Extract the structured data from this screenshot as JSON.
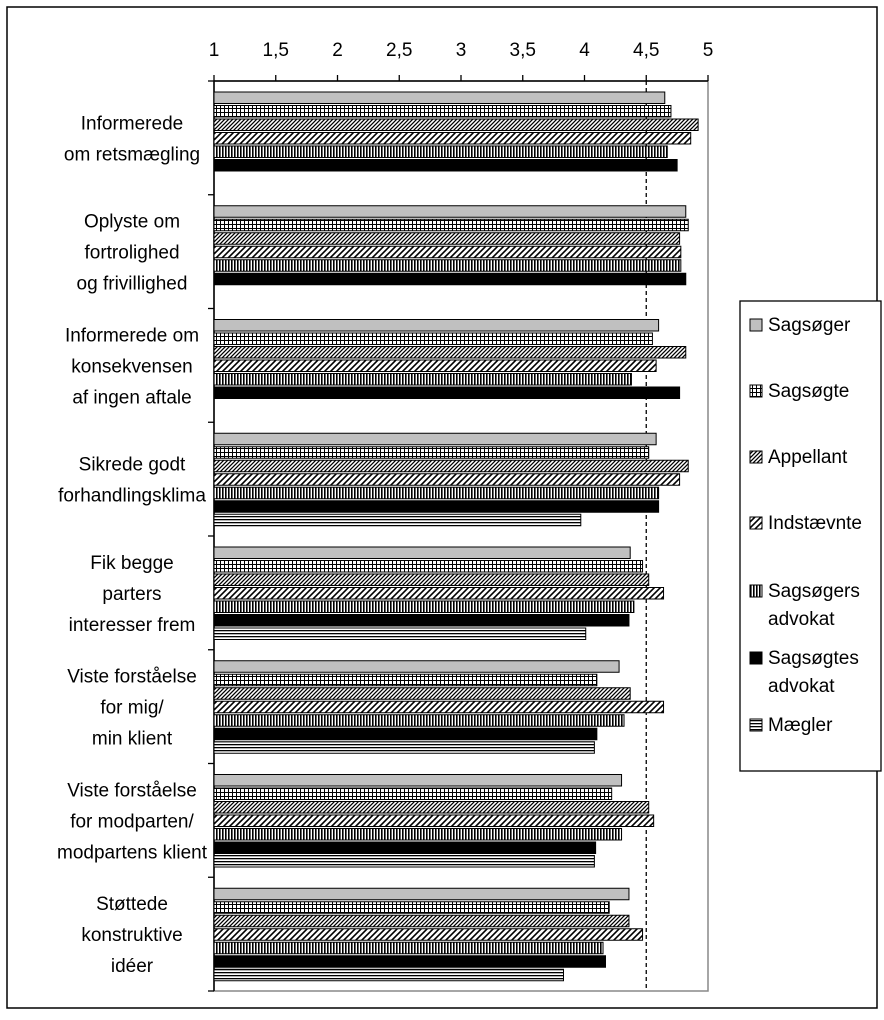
{
  "chart_data": {
    "type": "bar",
    "orientation": "horizontal",
    "title": "",
    "xlabel": "",
    "ylabel": "",
    "xlim": [
      1,
      5
    ],
    "x_ticks": [
      "1",
      "1,5",
      "2",
      "2,5",
      "3",
      "3,5",
      "4",
      "4,5",
      "5"
    ],
    "x_tick_values": [
      1,
      1.5,
      2,
      2.5,
      3,
      3.5,
      4,
      4.5,
      5
    ],
    "axis_position": "top",
    "gridlines": "dashed vertical at 4.5",
    "legend_position": "right",
    "categories": [
      [
        "Informerede",
        "om retsmægling"
      ],
      [
        "Oplyste om",
        "fortrolighed",
        "og frivillighed"
      ],
      [
        "Informerede om",
        "konsekvensen",
        "af ingen aftale"
      ],
      [
        "Sikrede godt",
        "forhandlingsklima"
      ],
      [
        "Fik begge",
        "parters",
        "interesser frem"
      ],
      [
        "Viste forståelse",
        "for mig/",
        "min klient"
      ],
      [
        "Viste forståelse",
        "for modparten/",
        "modpartens klient"
      ],
      [
        "Støttede",
        "konstruktive",
        "idéer"
      ]
    ],
    "series": [
      {
        "name": "Sagsøger",
        "pattern": "solid-gray",
        "legend_label": [
          "Sagsøger"
        ],
        "values": [
          4.65,
          4.82,
          4.6,
          4.58,
          4.37,
          4.28,
          4.3,
          4.36
        ]
      },
      {
        "name": "Sagsøgte",
        "pattern": "grid",
        "legend_label": [
          "Sagsøgte"
        ],
        "values": [
          4.7,
          4.84,
          4.55,
          4.52,
          4.47,
          4.1,
          4.22,
          4.2
        ]
      },
      {
        "name": "Appellant",
        "pattern": "diag-dense",
        "legend_label": [
          "Appellant"
        ],
        "values": [
          4.92,
          4.77,
          4.82,
          4.84,
          4.52,
          4.37,
          4.52,
          4.36
        ]
      },
      {
        "name": "Indstævnte",
        "pattern": "diag-wide",
        "legend_label": [
          "Indstævnte"
        ],
        "values": [
          4.86,
          4.78,
          4.58,
          4.77,
          4.64,
          4.64,
          4.56,
          4.47
        ]
      },
      {
        "name": "Sagsøgers advokat",
        "pattern": "vertical",
        "legend_label": [
          "Sagsøgers",
          "advokat"
        ],
        "values": [
          4.67,
          4.78,
          4.38,
          4.6,
          4.4,
          4.32,
          4.3,
          4.15
        ]
      },
      {
        "name": "Sagsøgtes advokat",
        "pattern": "solid-black",
        "legend_label": [
          "Sagsøgtes",
          "advokat"
        ],
        "values": [
          4.75,
          4.82,
          4.77,
          4.6,
          4.36,
          4.1,
          4.09,
          4.17
        ]
      },
      {
        "name": "Mægler",
        "pattern": "horizontal",
        "legend_label": [
          "Mægler"
        ],
        "values": [
          null,
          null,
          null,
          3.97,
          4.01,
          4.08,
          4.08,
          3.83
        ]
      }
    ]
  }
}
